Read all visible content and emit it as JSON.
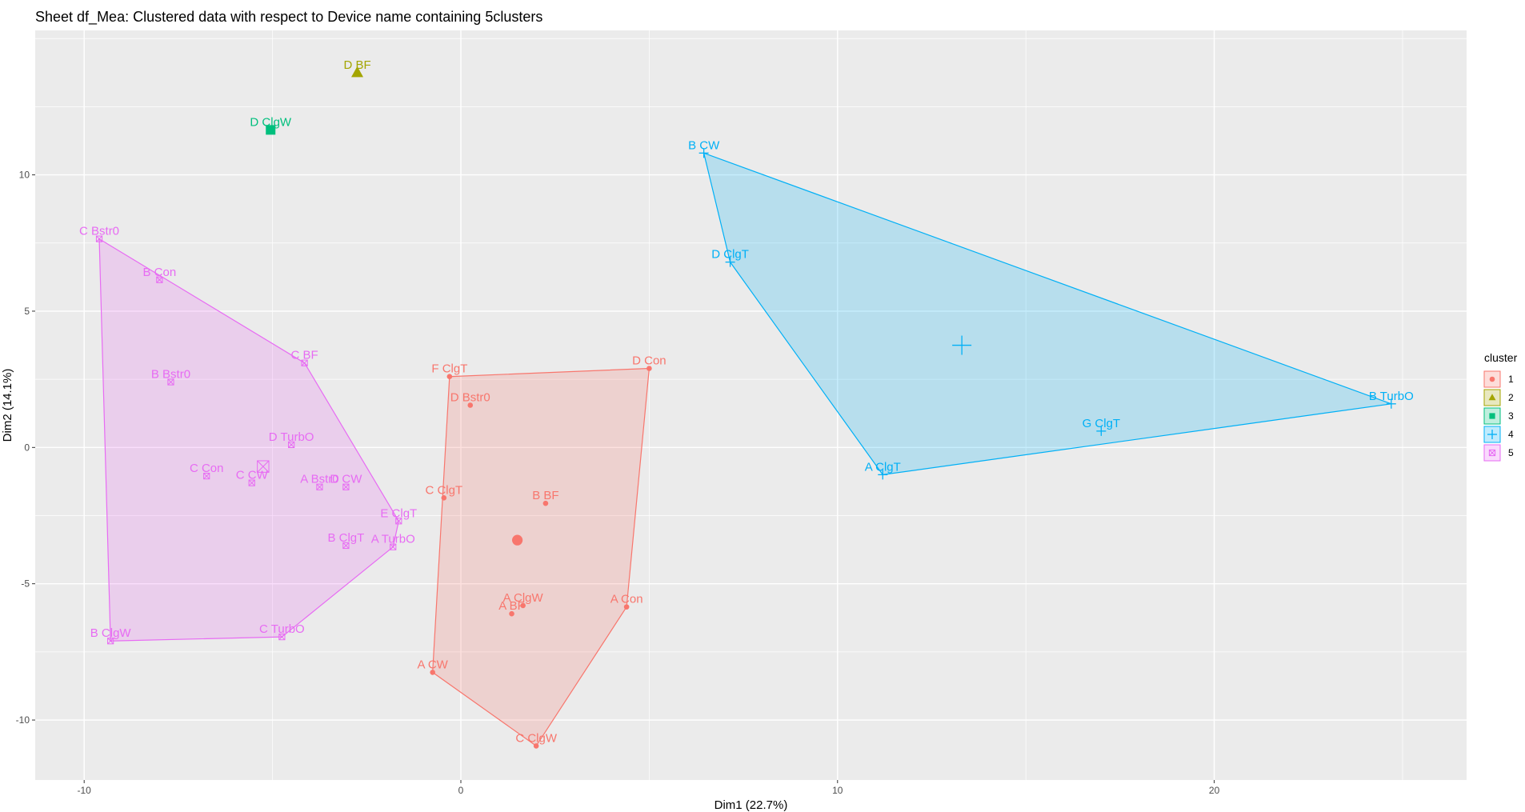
{
  "chart_data": {
    "type": "scatter",
    "title": "Sheet df_Mea: Clustered data with respect to Device name containing 5clusters",
    "xlabel": "Dim1 (22.7%)",
    "ylabel": "Dim2 (14.1%)",
    "xlim": [
      -11.3,
      26.7
    ],
    "ylim": [
      -12.2,
      15.3
    ],
    "x_ticks": [
      -10,
      0,
      10,
      20
    ],
    "y_ticks": [
      -10,
      -5,
      0,
      5,
      10
    ],
    "grid": true,
    "background": "#ebebeb",
    "legend": {
      "title": "cluster",
      "position": "right",
      "entries": [
        "1",
        "2",
        "3",
        "4",
        "5"
      ]
    },
    "series": [
      {
        "name": "1",
        "color": "#F8766D",
        "shape": "circle",
        "centroid": [
          1.5,
          -3.4
        ],
        "hull": true,
        "points": [
          {
            "label": "F ClgT",
            "x": -0.3,
            "y": 2.6
          },
          {
            "label": "D Con",
            "x": 5.0,
            "y": 2.9
          },
          {
            "label": "D Bstr0",
            "x": 0.25,
            "y": 1.55
          },
          {
            "label": "C ClgT",
            "x": -0.45,
            "y": -1.85
          },
          {
            "label": "B BF",
            "x": 2.25,
            "y": -2.05
          },
          {
            "label": "A ClgW",
            "x": 1.65,
            "y": -5.8
          },
          {
            "label": "A BF",
            "x": 1.35,
            "y": -6.1
          },
          {
            "label": "A Con",
            "x": 4.4,
            "y": -5.85
          },
          {
            "label": "A CW",
            "x": -0.75,
            "y": -8.25
          },
          {
            "label": "C ClgW",
            "x": 2.0,
            "y": -10.95
          }
        ]
      },
      {
        "name": "2",
        "color": "#A3A500",
        "shape": "triangle",
        "centroid": null,
        "hull": false,
        "points": [
          {
            "label": "D BF",
            "x": -2.75,
            "y": 13.75
          }
        ]
      },
      {
        "name": "3",
        "color": "#00BF7D",
        "shape": "square",
        "centroid": null,
        "hull": false,
        "points": [
          {
            "label": "D ClgW",
            "x": -5.05,
            "y": 11.65
          }
        ]
      },
      {
        "name": "4",
        "color": "#00B0F6",
        "shape": "plus",
        "centroid": [
          13.3,
          3.75
        ],
        "hull": true,
        "points": [
          {
            "label": "B CW",
            "x": 6.45,
            "y": 10.8
          },
          {
            "label": "D ClgT",
            "x": 7.15,
            "y": 6.8
          },
          {
            "label": "B TurbO",
            "x": 24.7,
            "y": 1.6
          },
          {
            "label": "G ClgT",
            "x": 17.0,
            "y": 0.6
          },
          {
            "label": "A ClgT",
            "x": 11.2,
            "y": -1.0
          }
        ]
      },
      {
        "name": "5",
        "color": "#E76BF3",
        "shape": "boxed-x",
        "centroid": [
          -5.25,
          -0.7
        ],
        "hull": true,
        "points": [
          {
            "label": "C Bstr0",
            "x": -9.6,
            "y": 7.65
          },
          {
            "label": "B Con",
            "x": -8.0,
            "y": 6.15
          },
          {
            "label": "C BF",
            "x": -4.15,
            "y": 3.1
          },
          {
            "label": "B Bstr0",
            "x": -7.7,
            "y": 2.4
          },
          {
            "label": "D TurbO",
            "x": -4.5,
            "y": 0.1
          },
          {
            "label": "C Con",
            "x": -6.75,
            "y": -1.05
          },
          {
            "label": "C CW",
            "x": -5.55,
            "y": -1.3
          },
          {
            "label": "A Bstr0",
            "x": -3.75,
            "y": -1.45
          },
          {
            "label": "D CW",
            "x": -3.05,
            "y": -1.45
          },
          {
            "label": "E ClgT",
            "x": -1.65,
            "y": -2.7
          },
          {
            "label": "B ClgT",
            "x": -3.05,
            "y": -3.6
          },
          {
            "label": "A TurbO",
            "x": -1.8,
            "y": -3.65
          },
          {
            "label": "B ClgW",
            "x": -9.3,
            "y": -7.1
          },
          {
            "label": "C TurbO",
            "x": -4.75,
            "y": -6.95
          }
        ]
      }
    ]
  }
}
